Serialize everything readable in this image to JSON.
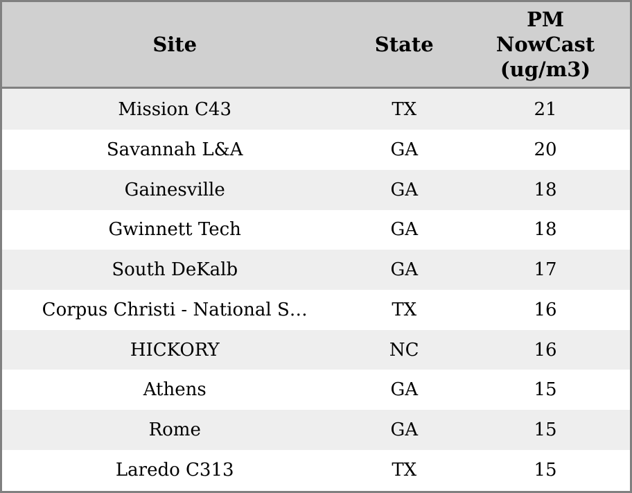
{
  "chart_data": {
    "type": "table",
    "columns": [
      {
        "id": "site",
        "label": "Site"
      },
      {
        "id": "state",
        "label": "State"
      },
      {
        "id": "pm_nowcast",
        "label": "PM\nNowCast\n(ug/m3)"
      }
    ],
    "rows": [
      {
        "site": "Mission C43",
        "state": "TX",
        "pm_nowcast": 21
      },
      {
        "site": "Savannah L&A",
        "state": "GA",
        "pm_nowcast": 20
      },
      {
        "site": "Gainesville",
        "state": "GA",
        "pm_nowcast": 18
      },
      {
        "site": "Gwinnett Tech",
        "state": "GA",
        "pm_nowcast": 18
      },
      {
        "site": "South DeKalb",
        "state": "GA",
        "pm_nowcast": 17
      },
      {
        "site": "Corpus Christi - National S…",
        "state": "TX",
        "pm_nowcast": 16
      },
      {
        "site": "HICKORY",
        "state": "NC",
        "pm_nowcast": 16
      },
      {
        "site": "Athens",
        "state": "GA",
        "pm_nowcast": 15
      },
      {
        "site": "Rome",
        "state": "GA",
        "pm_nowcast": 15
      },
      {
        "site": "Laredo C313",
        "state": "TX",
        "pm_nowcast": 15
      }
    ]
  },
  "colors": {
    "border": "#808080",
    "header_bg": "#d0d0d0",
    "row_odd_bg": "#eeeeee",
    "row_even_bg": "#ffffff",
    "text": "#000000"
  }
}
